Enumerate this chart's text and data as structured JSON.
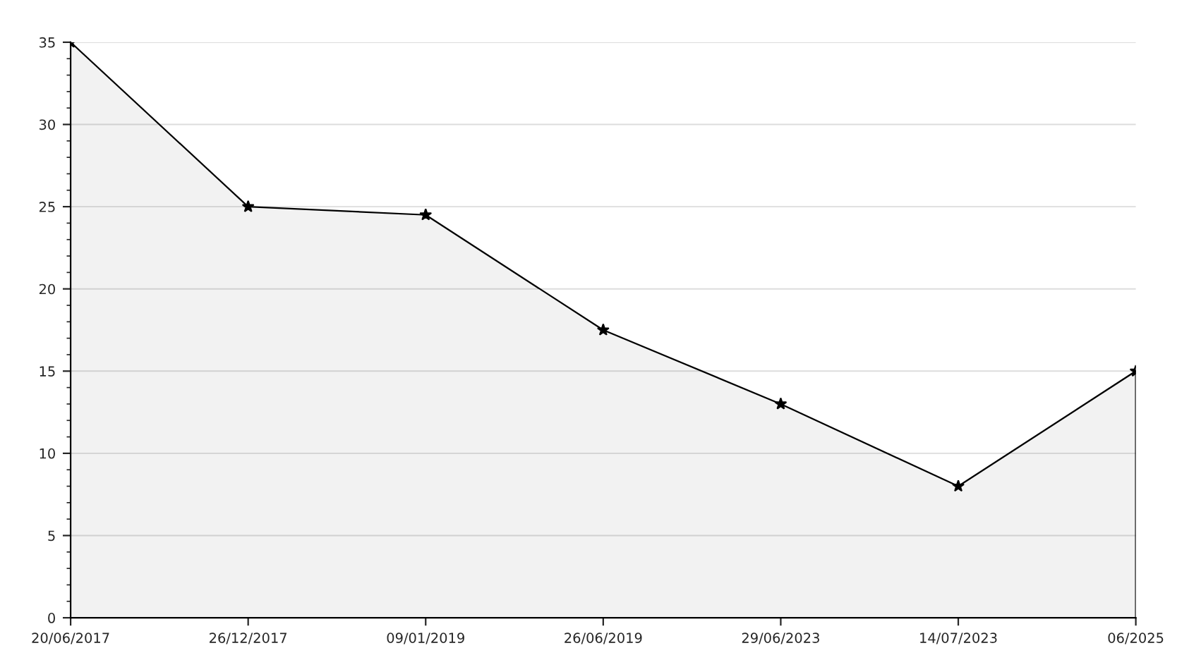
{
  "chart_data": {
    "type": "area",
    "categories": [
      "20/06/2017",
      "26/12/2017",
      "09/01/2019",
      "26/06/2019",
      "29/06/2023",
      "14/07/2023",
      "06/2025"
    ],
    "series": [
      {
        "color": "#000000",
        "values": [
          35,
          25,
          24.5,
          17.5,
          13,
          8,
          15
        ]
      }
    ],
    "ylim": [
      0,
      35
    ],
    "yticks": [
      0,
      5,
      10,
      15,
      20,
      25,
      30,
      35
    ],
    "grid": "y",
    "marker": "star",
    "line_style": "solid"
  }
}
